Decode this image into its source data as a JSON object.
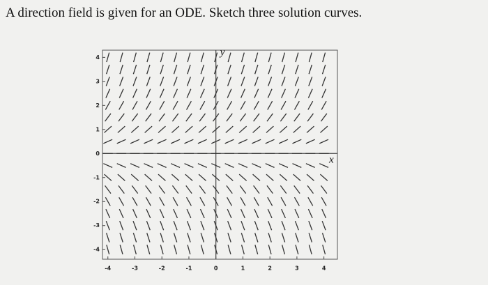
{
  "chart_data": {
    "type": "direction-field",
    "title": "A direction field is given for an ODE. Sketch three solution curves.",
    "x_label": "x",
    "y_label": "y",
    "xlim": [
      -4.2,
      4.5
    ],
    "ylim": [
      -4.4,
      4.3
    ],
    "xticks": [
      -4,
      -3,
      -2,
      -1,
      0,
      1,
      2,
      3,
      4
    ],
    "yticks": [
      -4,
      -3,
      -2,
      -1,
      0,
      1,
      2,
      3,
      4
    ],
    "x_cols": [
      -4,
      -3.5,
      -3,
      -2.5,
      -2,
      -1.5,
      -1,
      -0.5,
      0,
      0.5,
      1,
      1.5,
      2,
      2.5,
      3,
      3.5,
      4
    ],
    "y_rows": [
      -4,
      -3.5,
      -3,
      -2.5,
      -2,
      -1.5,
      -1,
      -0.5,
      0,
      0.5,
      1,
      1.5,
      2,
      2.5,
      3,
      3.5,
      4
    ],
    "slopes": [
      -4,
      -3.5,
      -3,
      -2.5,
      -2,
      -1.5,
      -1,
      -0.5,
      0,
      0.5,
      1,
      1.5,
      2,
      2.5,
      3,
      3.5,
      4
    ],
    "color": "#333333"
  }
}
